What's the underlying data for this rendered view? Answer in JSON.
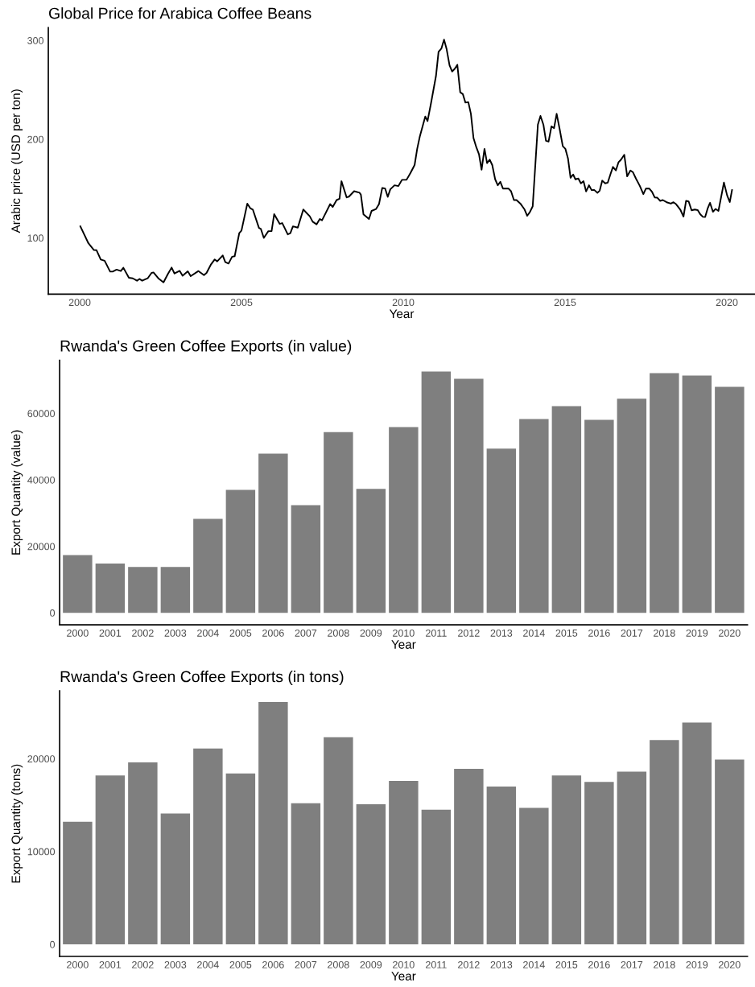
{
  "chart_data": [
    {
      "type": "line",
      "title": "Global Price for Arabica Coffee Beans",
      "xlabel": "Year",
      "ylabel": "Arabic price (USD per ton)",
      "xlim": [
        1999.03,
        2020.87
      ],
      "ylim": [
        43,
        313
      ],
      "xticks": [
        2000,
        2005,
        2010,
        2015,
        2020
      ],
      "yticks": [
        100,
        200,
        300
      ],
      "grid": false,
      "series": [
        {
          "color": "#000000",
          "x": [
            2000.02,
            2000.15,
            2000.27,
            2000.44,
            2000.52,
            2000.65,
            2000.77,
            2000.94,
            2001.02,
            2001.14,
            2001.27,
            2001.35,
            2001.52,
            2001.64,
            2001.77,
            2001.85,
            2001.93,
            2002.1,
            2002.22,
            2002.28,
            2002.43,
            2002.59,
            2002.72,
            2002.84,
            2002.93,
            2003.09,
            2003.18,
            2003.34,
            2003.43,
            2003.67,
            2003.84,
            2003.92,
            2004.05,
            2004.17,
            2004.25,
            2004.42,
            2004.5,
            2004.6,
            2004.71,
            2004.79,
            2004.93,
            2005.0,
            2005.18,
            2005.27,
            2005.35,
            2005.54,
            2005.6,
            2005.69,
            2005.83,
            2005.93,
            2006.01,
            2006.18,
            2006.26,
            2006.43,
            2006.51,
            2006.59,
            2006.74,
            2006.91,
            2007.11,
            2007.2,
            2007.32,
            2007.42,
            2007.49,
            2007.74,
            2007.82,
            2007.94,
            2008.03,
            2008.09,
            2008.25,
            2008.32,
            2008.48,
            2008.65,
            2008.69,
            2008.77,
            2008.94,
            2009.02,
            2009.16,
            2009.25,
            2009.35,
            2009.44,
            2009.52,
            2009.6,
            2009.73,
            2009.85,
            2009.96,
            2010.1,
            2010.22,
            2010.35,
            2010.43,
            2010.51,
            2010.68,
            2010.75,
            2010.85,
            2011.01,
            2011.09,
            2011.18,
            2011.26,
            2011.34,
            2011.43,
            2011.51,
            2011.59,
            2011.67,
            2011.76,
            2011.84,
            2011.92,
            2012.01,
            2012.09,
            2012.17,
            2012.26,
            2012.34,
            2012.42,
            2012.51,
            2012.59,
            2012.67,
            2012.75,
            2012.84,
            2012.92,
            2013.0,
            2013.08,
            2013.25,
            2013.33,
            2013.42,
            2013.5,
            2013.62,
            2013.75,
            2013.83,
            2013.91,
            2014.0,
            2014.16,
            2014.24,
            2014.33,
            2014.41,
            2014.49,
            2014.58,
            2014.66,
            2014.74,
            2014.83,
            2014.93,
            2015.01,
            2015.09,
            2015.17,
            2015.25,
            2015.32,
            2015.41,
            2015.49,
            2015.57,
            2015.65,
            2015.74,
            2015.82,
            2015.9,
            2016.0,
            2016.07,
            2016.15,
            2016.24,
            2016.32,
            2016.4,
            2016.48,
            2016.57,
            2016.65,
            2016.73,
            2016.83,
            2016.92,
            2017.02,
            2017.1,
            2017.19,
            2017.31,
            2017.42,
            2017.5,
            2017.6,
            2017.69,
            2017.77,
            2017.85,
            2017.94,
            2018.02,
            2018.14,
            2018.27,
            2018.35,
            2018.43,
            2018.56,
            2018.66,
            2018.74,
            2018.82,
            2018.91,
            2019.01,
            2019.1,
            2019.18,
            2019.26,
            2019.33,
            2019.41,
            2019.48,
            2019.57,
            2019.65,
            2019.74,
            2019.91,
            2020.01,
            2020.09,
            2020.16
          ],
          "values": [
            111.7,
            102.7,
            94.5,
            87.7,
            87.5,
            78.1,
            76.8,
            65.8,
            65.8,
            67.8,
            66.4,
            69.7,
            59.6,
            59.0,
            56.6,
            58.4,
            56.6,
            59.0,
            64.5,
            65.0,
            59.0,
            54.9,
            63.1,
            69.9,
            63.9,
            66.6,
            61.7,
            66.1,
            61.2,
            66.4,
            62.3,
            64.5,
            72.7,
            78.1,
            76.2,
            82.2,
            75.4,
            74.0,
            80.9,
            81.4,
            104.7,
            107.4,
            134.7,
            130.1,
            128.7,
            110.1,
            109.0,
            100.0,
            106.8,
            106.8,
            124.0,
            114.2,
            115.0,
            103.5,
            104.7,
            111.7,
            110.4,
            128.7,
            121.9,
            116.4,
            113.7,
            119.1,
            117.8,
            134.2,
            131.4,
            138.3,
            139.6,
            157.4,
            141.0,
            141.8,
            147.3,
            145.7,
            143.7,
            123.8,
            119.1,
            127.3,
            129.3,
            134.2,
            150.6,
            150.0,
            141.6,
            149.2,
            153.3,
            152.5,
            158.8,
            158.8,
            165.6,
            173.8,
            190.2,
            202.5,
            223.0,
            218.3,
            235.2,
            263.9,
            288.5,
            292.0,
            300.8,
            291.2,
            274.8,
            268.6,
            271.3,
            275.4,
            247.5,
            245.7,
            237.1,
            237.5,
            225.7,
            201.1,
            191.6,
            184.7,
            169.1,
            190.2,
            175.7,
            179.3,
            173.8,
            159.3,
            153.3,
            156.8,
            150.0,
            150.0,
            147.3,
            138.3,
            138.3,
            134.7,
            128.7,
            122.4,
            126.0,
            132.0,
            214.8,
            223.5,
            214.8,
            198.4,
            197.5,
            212.9,
            211.2,
            225.7,
            210.7,
            192.9,
            190.2,
            180.6,
            160.9,
            164.2,
            159.3,
            160.1,
            155.2,
            157.4,
            147.0,
            153.3,
            148.4,
            148.6,
            145.7,
            147.8,
            158.0,
            155.2,
            156.0,
            164.2,
            171.9,
            168.3,
            176.5,
            179.3,
            184.2,
            162.3,
            168.3,
            166.4,
            160.1,
            152.7,
            144.3,
            150.0,
            150.0,
            146.5,
            141.0,
            140.7,
            137.5,
            138.3,
            136.1,
            134.7,
            136.1,
            134.2,
            128.7,
            121.6,
            137.5,
            136.9,
            127.9,
            128.7,
            128.1,
            123.8,
            121.3,
            121.1,
            130.1,
            135.5,
            126.5,
            129.3,
            127.3,
            156.0,
            142.9,
            136.3,
            148.4
          ]
        }
      ]
    },
    {
      "type": "bar",
      "title": "Rwanda's Green Coffee Exports (in value)",
      "xlabel": "Year",
      "ylabel": "Export Quantity (value)",
      "ylim": [
        -3600,
        76000
      ],
      "yticks": [
        0,
        20000,
        40000,
        60000
      ],
      "grid": false,
      "categories": [
        "2000",
        "2001",
        "2002",
        "2003",
        "2004",
        "2005",
        "2006",
        "2007",
        "2008",
        "2009",
        "2010",
        "2011",
        "2012",
        "2013",
        "2014",
        "2015",
        "2016",
        "2017",
        "2018",
        "2019",
        "2020"
      ],
      "series": [
        {
          "color": "#7f7f7f",
          "values": [
            17400,
            14800,
            13800,
            13800,
            28300,
            37000,
            47900,
            32400,
            54400,
            37300,
            55900,
            72600,
            70400,
            49400,
            58300,
            62200,
            58100,
            64400,
            72100,
            71400,
            68000
          ]
        }
      ]
    },
    {
      "type": "bar",
      "title": "Rwanda's Green Coffee Exports (in tons)",
      "xlabel": "Year",
      "ylabel": "Export Quantity (tons)",
      "ylim": [
        -1300,
        27300
      ],
      "yticks": [
        0,
        10000,
        20000
      ],
      "grid": false,
      "categories": [
        "2000",
        "2001",
        "2002",
        "2003",
        "2004",
        "2005",
        "2006",
        "2007",
        "2008",
        "2009",
        "2010",
        "2011",
        "2012",
        "2013",
        "2014",
        "2015",
        "2016",
        "2017",
        "2018",
        "2019",
        "2020"
      ],
      "series": [
        {
          "color": "#7f7f7f",
          "values": [
            13200,
            18200,
            19600,
            14100,
            21100,
            18400,
            26100,
            15200,
            22300,
            15100,
            17600,
            14500,
            18900,
            17000,
            14700,
            18200,
            17500,
            18600,
            22000,
            23900,
            19900
          ]
        }
      ]
    }
  ]
}
